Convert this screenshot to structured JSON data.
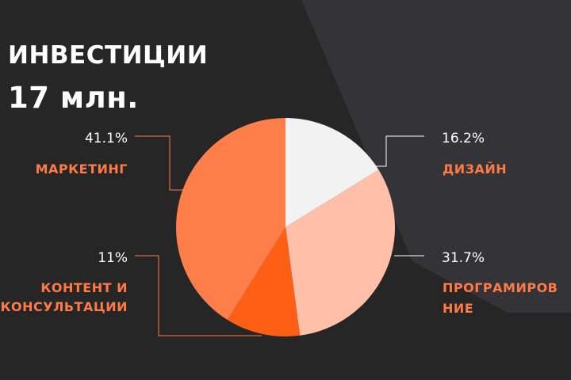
{
  "header": {
    "title_line1": "ИНВЕСТИЦИИ",
    "title_line2": "17 млн."
  },
  "colors": {
    "background": "#262626",
    "panel": "#333338",
    "label_accent": "#ff7a45"
  },
  "chart_data": {
    "type": "pie",
    "slices": [
      {
        "label": "ДИЗАЙН",
        "value": 16.2,
        "display": "16.2%",
        "color": "#f2f2f2"
      },
      {
        "label": "ПРОГРАМИРОВАНИЕ",
        "label_lines": [
          "ПРОГРАМИРОВ",
          "НИЕ"
        ],
        "value": 31.7,
        "display": "31.7%",
        "color": "#ffbfa8"
      },
      {
        "label": "КОНТЕНТ И КОНСУЛЬТАЦИИ",
        "label_lines": [
          "КОНТЕНТ И",
          "КОНСУЛЬТАЦИИ"
        ],
        "value": 11,
        "display": "11%",
        "color": "#ff5f14"
      },
      {
        "label": "МАРКЕТИНГ",
        "value": 41.1,
        "display": "41.1%",
        "color": "#ff7e4a"
      }
    ]
  }
}
